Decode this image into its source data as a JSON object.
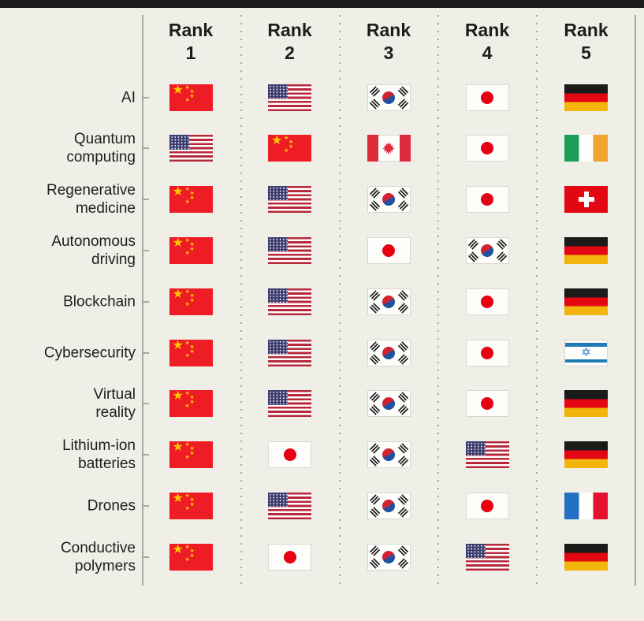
{
  "page": {
    "background": "#f0efe7",
    "top_bar_color": "#1c1c1a",
    "text_color": "#1d1d1b",
    "line_color": "#a8a79f"
  },
  "header": {
    "cols": [
      {
        "word": "Rank",
        "num": "1"
      },
      {
        "word": "Rank",
        "num": "2"
      },
      {
        "word": "Rank",
        "num": "3"
      },
      {
        "word": "Rank",
        "num": "4"
      },
      {
        "word": "Rank",
        "num": "5"
      }
    ]
  },
  "chart_data": {
    "type": "table",
    "columns": [
      "Rank 1",
      "Rank 2",
      "Rank 3",
      "Rank 4",
      "Rank 5"
    ],
    "rows": [
      {
        "category": "AI",
        "label_lines": [
          "AI"
        ],
        "ranks": [
          "China",
          "United States",
          "South Korea",
          "Japan",
          "Germany"
        ]
      },
      {
        "category": "Quantum computing",
        "label_lines": [
          "Quantum",
          "computing"
        ],
        "ranks": [
          "United States",
          "China",
          "Canada",
          "Japan",
          "Ireland"
        ]
      },
      {
        "category": "Regenerative medicine",
        "label_lines": [
          "Regenerative",
          "medicine"
        ],
        "ranks": [
          "China",
          "United States",
          "South Korea",
          "Japan",
          "Switzerland"
        ]
      },
      {
        "category": "Autonomous driving",
        "label_lines": [
          "Autonomous",
          "driving"
        ],
        "ranks": [
          "China",
          "United States",
          "Japan",
          "South Korea",
          "Germany"
        ]
      },
      {
        "category": "Blockchain",
        "label_lines": [
          "Blockchain"
        ],
        "ranks": [
          "China",
          "United States",
          "South Korea",
          "Japan",
          "Germany"
        ]
      },
      {
        "category": "Cybersecurity",
        "label_lines": [
          "Cybersecurity"
        ],
        "ranks": [
          "China",
          "United States",
          "South Korea",
          "Japan",
          "Israel"
        ]
      },
      {
        "category": "Virtual reality",
        "label_lines": [
          "Virtual",
          "reality"
        ],
        "ranks": [
          "China",
          "United States",
          "South Korea",
          "Japan",
          "Germany"
        ]
      },
      {
        "category": "Lithium-ion batteries",
        "label_lines": [
          "Lithium-ion",
          "batteries"
        ],
        "ranks": [
          "China",
          "Japan",
          "South Korea",
          "United States",
          "Germany"
        ]
      },
      {
        "category": "Drones",
        "label_lines": [
          "Drones"
        ],
        "ranks": [
          "China",
          "United States",
          "South Korea",
          "Japan",
          "France"
        ]
      },
      {
        "category": "Conductive polymers",
        "label_lines": [
          "Conductive",
          "polymers"
        ],
        "ranks": [
          "China",
          "Japan",
          "South Korea",
          "United States",
          "Germany"
        ]
      }
    ]
  },
  "flag_colors": {
    "china_red": "#ee1c25",
    "china_star": "#fec600",
    "us_blue": "#3c3c70",
    "us_red": "#b5293a",
    "korea_red": "#cf2330",
    "korea_blue": "#2050a0",
    "korea_black": "#1d1d1b",
    "japan_red": "#e60012",
    "germany_black": "#1a1a18",
    "germany_red": "#e30613",
    "germany_gold": "#f2b50c",
    "canada_red": "#dd2c3c",
    "ireland_green": "#1d9e58",
    "ireland_orange": "#f0a32f",
    "switzerland_red": "#e30613",
    "israel_blue": "#1f7ab8",
    "france_blue": "#2470c2",
    "france_red": "#e8112d"
  }
}
